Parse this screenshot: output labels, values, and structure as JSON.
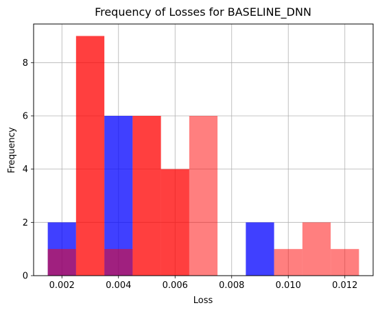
{
  "chart_data": {
    "type": "bar",
    "title": "Frequency of Losses for BASELINE_DNN",
    "xlabel": "Loss",
    "ylabel": "Frequency",
    "xlim": [
      0.001,
      0.013
    ],
    "ylim": [
      0,
      9.45
    ],
    "bin_width": 0.001,
    "x_ticks": [
      "0.002",
      "0.004",
      "0.006",
      "0.008",
      "0.010",
      "0.012"
    ],
    "y_ticks": [
      "0",
      "2",
      "4",
      "6",
      "8"
    ],
    "x_tick_values": [
      0.002,
      0.004,
      0.006,
      0.008,
      0.01,
      0.012
    ],
    "y_tick_values": [
      0,
      2,
      4,
      6,
      8
    ],
    "grid": true,
    "series": [
      {
        "color": "#0000ff",
        "opacity": 0.75,
        "bins": [
          0.0015,
          0.0025,
          0.0035,
          0.0045,
          0.0055,
          0.0065,
          0.0075,
          0.0085,
          0.0095,
          0.0105,
          0.0115
        ],
        "values": [
          2,
          0,
          6,
          0,
          0,
          0,
          0,
          2,
          0,
          0,
          0
        ]
      },
      {
        "color": "#ff0000",
        "opacity": 0.5,
        "bins": [
          0.0015,
          0.0025,
          0.0035,
          0.0045,
          0.0055,
          0.0065,
          0.0075,
          0.0085,
          0.0095,
          0.0105,
          0.0115
        ],
        "values": [
          1,
          9,
          1,
          6,
          4,
          0,
          0,
          0,
          1,
          0,
          0
        ]
      },
      {
        "color": "#ff0000",
        "opacity": 0.5,
        "bins": [
          0.0015,
          0.0025,
          0.0035,
          0.0045,
          0.0055,
          0.0065,
          0.0075,
          0.0085,
          0.0095,
          0.0105,
          0.0115
        ],
        "values": [
          0,
          9,
          0,
          6,
          4,
          6,
          0,
          0,
          0,
          2,
          1
        ]
      }
    ]
  }
}
